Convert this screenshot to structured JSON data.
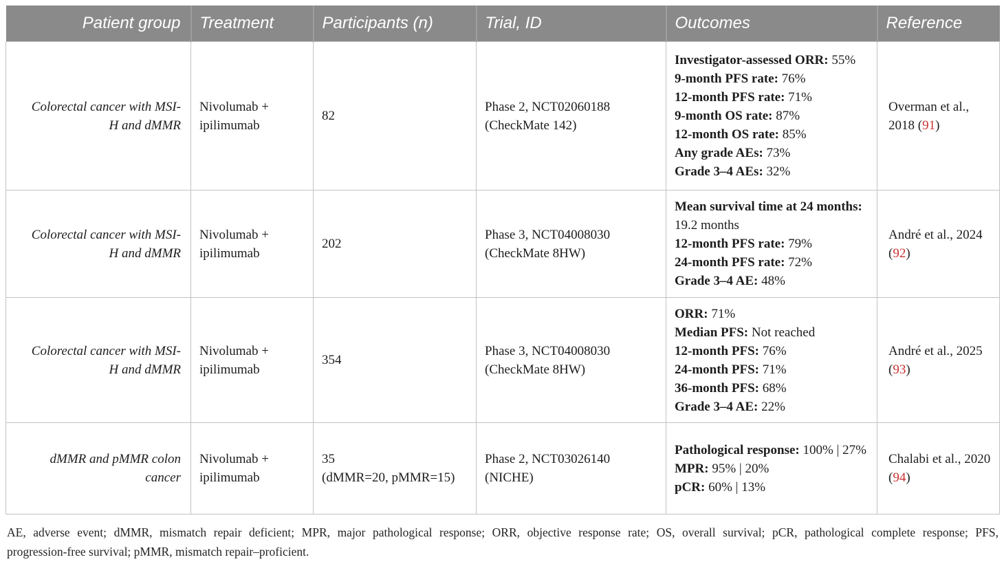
{
  "colors": {
    "header_bg": "#8a8a8a",
    "header_text": "#ffffff",
    "body_text": "#1d1d1d",
    "cell_border": "#c2c2c2",
    "reference_accent_red": "#cc3232"
  },
  "table": {
    "headers": [
      "Patient group",
      "Treatment",
      "Participants (n)",
      "Trial, ID",
      "Outcomes",
      "Reference"
    ],
    "rows": [
      {
        "patient_group": "Colorectal cancer with MSI-\nH and dMMR",
        "treatment": "Nivolumab +\nipilimumab",
        "participants": "82",
        "trial": "Phase 2, NCT02060188\n(CheckMate 142)",
        "outcomes": [
          {
            "label": "Investigator-assessed ORR:",
            "value": "55%"
          },
          {
            "label": "9-month PFS rate:",
            "value": "76%"
          },
          {
            "label": "12-month PFS rate:",
            "value": "71%"
          },
          {
            "label": "9-month OS rate:",
            "value": "87%"
          },
          {
            "label": "12-month OS rate:",
            "value": "85%"
          },
          {
            "label": "Any grade AEs:",
            "value": "73%"
          },
          {
            "label": "Grade 3–4 AEs:",
            "value": "32%"
          }
        ],
        "reference": {
          "prefix": "Overman et al., 2018 (",
          "number": "91",
          "suffix": ")"
        }
      },
      {
        "patient_group": "Colorectal cancer with MSI-\nH and dMMR",
        "treatment": "Nivolumab +\nipilimumab",
        "participants": "202",
        "trial": "Phase 3, NCT04008030\n(CheckMate 8HW)",
        "outcomes": [
          {
            "label": "Mean survival time at 24 months:",
            "value": "19.2 months"
          },
          {
            "label": "12-month PFS rate:",
            "value": "79%"
          },
          {
            "label": "24-month PFS rate:",
            "value": "72%"
          },
          {
            "label": "Grade 3–4 AE:",
            "value": "48%"
          }
        ],
        "reference": {
          "prefix": "André et al., 2024 (",
          "number": "92",
          "suffix": ")"
        }
      },
      {
        "patient_group": "Colorectal cancer with MSI-\nH and dMMR",
        "treatment": "Nivolumab +\nipilimumab",
        "participants": "354",
        "trial": "Phase 3, NCT04008030\n(CheckMate 8HW)",
        "outcomes": [
          {
            "label": "ORR:",
            "value": "71%"
          },
          {
            "label": "Median PFS:",
            "value": "Not reached"
          },
          {
            "label": "12-month PFS:",
            "value": "76%"
          },
          {
            "label": "24-month PFS:",
            "value": "71%"
          },
          {
            "label": "36-month PFS:",
            "value": "68%"
          },
          {
            "label": "Grade 3–4 AE:",
            "value": "22%"
          }
        ],
        "reference": {
          "prefix": "André et al., 2025 (",
          "number": "93",
          "suffix": ")"
        }
      },
      {
        "patient_group": "dMMR and pMMR colon\ncancer",
        "treatment": "Nivolumab +\nipilimumab",
        "participants": "35\n(dMMR=20, pMMR=15)",
        "trial": "Phase 2, NCT03026140\n(NICHE)",
        "outcomes": [
          {
            "label": "Pathological response:",
            "value": "100% | 27%"
          },
          {
            "label": "MPR:",
            "value": "95% | 20%"
          },
          {
            "label": "pCR:",
            "value": "60% | 13%"
          }
        ],
        "reference": {
          "prefix": "Chalabi et al., 2020 (",
          "number": "94",
          "suffix": ")"
        }
      }
    ]
  },
  "footnote": {
    "line1": "AE, adverse event; dMMR, mismatch repair deficient; MPR, major pathological response; ORR, objective response rate; OS, overall survival; pCR, pathological complete response; PFS,",
    "line2": "progression-free survival; pMMR, mismatch repair–proficient."
  }
}
